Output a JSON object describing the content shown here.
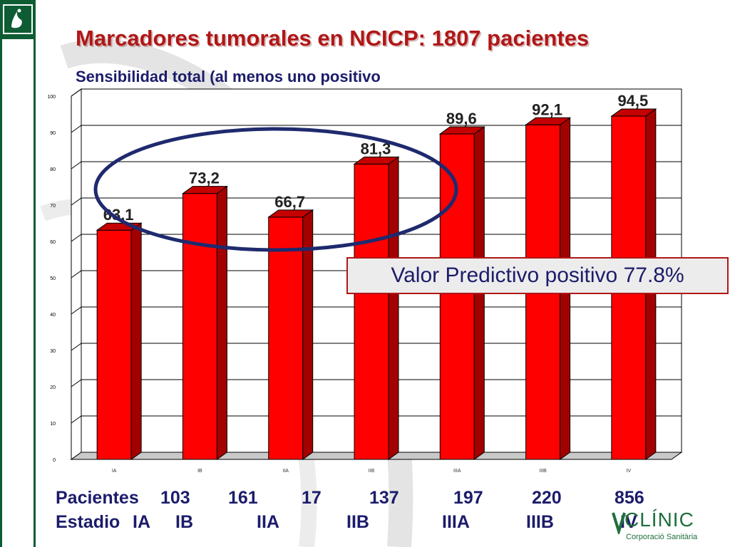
{
  "header": {
    "title": "Marcadores tumorales en NCICP: 1807 pacientes",
    "subtitle": "Sensibilidad total (al menos uno positivo"
  },
  "colors": {
    "brand_green": "#0e5c33",
    "bar_face": "#ff0000",
    "bar_side": "#a30000",
    "bar_top": "#c40000",
    "title_red": "#b01717",
    "text_navy": "#1c1c6b",
    "ellipse": "#1f2a6e"
  },
  "annotation": {
    "ppv_text": "Valor Predictivo positivo 77.8%"
  },
  "table": {
    "pacientes_label": "Pacientes",
    "pacientes_values": [
      "103",
      "161",
      "17",
      "137",
      "197",
      "220",
      "856"
    ],
    "estadio_label": "Estadio",
    "estadio_values": [
      "IA",
      "IB",
      "IIA",
      "IIB",
      "IIIA",
      "IIIB",
      "IV"
    ]
  },
  "footer_logo": {
    "name": "CLÍNIC",
    "tagline": "Corporació Sanitària"
  },
  "chart_data": {
    "type": "bar",
    "title": "Sensibilidad total (al menos uno positivo",
    "categories": [
      "IA",
      "IB",
      "IIA",
      "IIB",
      "IIIA",
      "IIIB",
      "IV"
    ],
    "values": [
      63.1,
      73.2,
      66.7,
      81.3,
      89.6,
      92.1,
      94.5
    ],
    "value_labels": [
      "63,1",
      "73,2",
      "66,7",
      "81,3",
      "89,6",
      "92,1",
      "94,5"
    ],
    "yticks": [
      "0",
      "10",
      "20",
      "30",
      "40",
      "50",
      "60",
      "70",
      "80",
      "90",
      "100"
    ],
    "ylim": [
      0,
      100
    ],
    "grid": true,
    "xlabel": "",
    "ylabel": ""
  }
}
